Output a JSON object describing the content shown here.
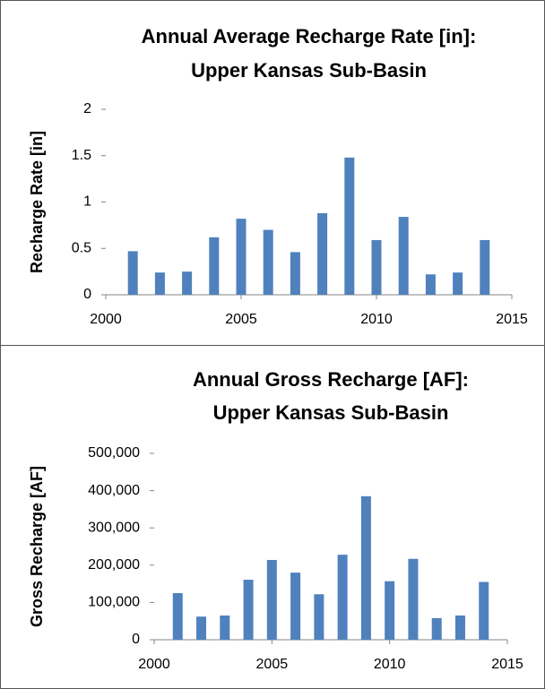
{
  "chart_data": [
    {
      "type": "bar",
      "title": [
        "Annual Average Recharge Rate [in]:",
        "Upper Kansas Sub-Basin"
      ],
      "y_label": "Recharge Rate [in]",
      "x": [
        2001,
        2002,
        2003,
        2004,
        2005,
        2006,
        2007,
        2008,
        2009,
        2010,
        2011,
        2012,
        2013,
        2014
      ],
      "values": [
        0.47,
        0.24,
        0.25,
        0.62,
        0.82,
        0.7,
        0.46,
        0.88,
        1.48,
        0.59,
        0.84,
        0.22,
        0.24,
        0.59
      ],
      "color": "#4f81bd",
      "xlim": [
        2000,
        2015
      ],
      "xticks": [
        2000,
        2005,
        2010,
        2015
      ],
      "ylim": [
        0,
        2
      ],
      "yticks": [
        0,
        0.5,
        1,
        1.5,
        2
      ]
    },
    {
      "type": "bar",
      "title": [
        "Annual Gross Recharge [AF]:",
        "Upper Kansas Sub-Basin"
      ],
      "y_label": "Gross Recharge [AF]",
      "x": [
        2001,
        2002,
        2003,
        2004,
        2005,
        2006,
        2007,
        2008,
        2009,
        2010,
        2011,
        2012,
        2013,
        2014
      ],
      "values": [
        125000,
        62000,
        65000,
        161000,
        214000,
        180000,
        122000,
        228000,
        385000,
        157000,
        217000,
        58000,
        65000,
        155000
      ],
      "color": "#4f81bd",
      "xlim": [
        2000,
        2015
      ],
      "xticks": [
        2000,
        2005,
        2010,
        2015
      ],
      "ylim": [
        0,
        500000
      ],
      "yticks": [
        0,
        {
          "value": 100000,
          "label": "100,000"
        },
        {
          "value": 200000,
          "label": "200,000"
        },
        {
          "value": 300000,
          "label": "300,000"
        },
        {
          "value": 400000,
          "label": "400,000"
        },
        {
          "value": 500000,
          "label": "500,000"
        }
      ]
    }
  ]
}
